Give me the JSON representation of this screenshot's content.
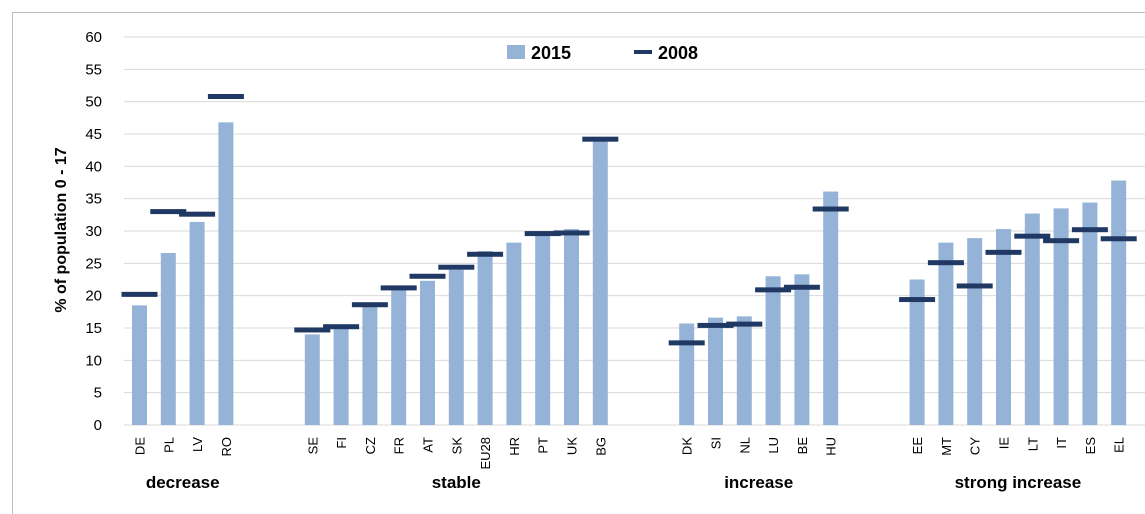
{
  "chart_data": {
    "type": "bar",
    "ylabel": "% of population 0 - 17",
    "ylim": [
      0,
      60
    ],
    "ytick_step": 5,
    "grid": true,
    "legend_position": "top-center",
    "colors": {
      "bar_2015": "#95b3d7",
      "marker_2008": "#1f3864",
      "grid": "#d9d9d9"
    },
    "series": [
      {
        "name": "2015",
        "kind": "bar"
      },
      {
        "name": "2008",
        "kind": "marker"
      }
    ],
    "groups": [
      {
        "label": "decrease",
        "categories": [
          {
            "name": "DE",
            "v2015": 18.5,
            "v2008": 20.2
          },
          {
            "name": "PL",
            "v2015": 26.6,
            "v2008": 33.0
          },
          {
            "name": "LV",
            "v2015": 31.4,
            "v2008": 32.6
          },
          {
            "name": "RO",
            "v2015": 46.8,
            "v2008": 50.8
          }
        ]
      },
      {
        "label": "stable",
        "categories": [
          {
            "name": "SE",
            "v2015": 14.0,
            "v2008": 14.7
          },
          {
            "name": "FI",
            "v2015": 15.0,
            "v2008": 15.2
          },
          {
            "name": "CZ",
            "v2015": 18.5,
            "v2008": 18.6
          },
          {
            "name": "FR",
            "v2015": 21.0,
            "v2008": 21.2
          },
          {
            "name": "AT",
            "v2015": 22.3,
            "v2008": 23.0
          },
          {
            "name": "SK",
            "v2015": 24.0,
            "v2008": 24.4
          },
          {
            "name": "EU28",
            "v2015": 26.9,
            "v2008": 26.4
          },
          {
            "name": "HR",
            "v2015": 28.2,
            "v2008": null
          },
          {
            "name": "PT",
            "v2015": 29.6,
            "v2008": 29.6
          },
          {
            "name": "UK",
            "v2015": 30.3,
            "v2008": 29.7
          },
          {
            "name": "BG",
            "v2015": 44.0,
            "v2008": 44.2
          }
        ]
      },
      {
        "label": "increase",
        "categories": [
          {
            "name": "DK",
            "v2015": 15.7,
            "v2008": 12.7
          },
          {
            "name": "SI",
            "v2015": 16.6,
            "v2008": 15.4
          },
          {
            "name": "NL",
            "v2015": 16.8,
            "v2008": 15.6
          },
          {
            "name": "LU",
            "v2015": 23.0,
            "v2008": 20.9
          },
          {
            "name": "BE",
            "v2015": 23.3,
            "v2008": 21.3
          },
          {
            "name": "HU",
            "v2015": 36.1,
            "v2008": 33.4
          }
        ]
      },
      {
        "label": "strong increase",
        "categories": [
          {
            "name": "EE",
            "v2015": 22.5,
            "v2008": 19.4
          },
          {
            "name": "MT",
            "v2015": 28.2,
            "v2008": 25.1
          },
          {
            "name": "CY",
            "v2015": 28.9,
            "v2008": 21.5
          },
          {
            "name": "IE",
            "v2015": 30.3,
            "v2008": 26.7
          },
          {
            "name": "LT",
            "v2015": 32.7,
            "v2008": 29.2
          },
          {
            "name": "IT",
            "v2015": 33.5,
            "v2008": 28.5
          },
          {
            "name": "ES",
            "v2015": 34.4,
            "v2008": 30.2
          },
          {
            "name": "EL",
            "v2015": 37.8,
            "v2008": 28.8
          }
        ]
      }
    ]
  }
}
